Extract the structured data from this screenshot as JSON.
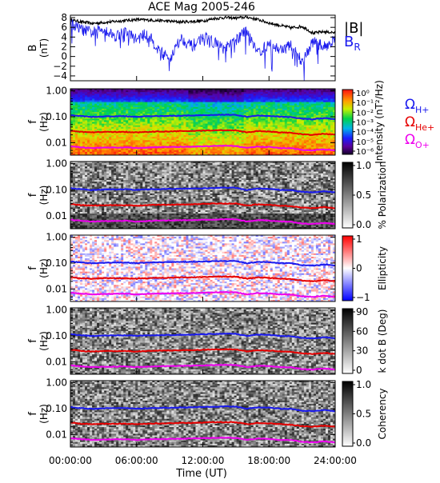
{
  "title": "ACE Mag 2005-246",
  "chart_data": [
    {
      "type": "line",
      "ylabel_main": "B",
      "ylabel_unit": "(nT)",
      "ylim": [
        -5,
        8.5
      ],
      "yticks": [
        8,
        6,
        4,
        2,
        0,
        -2,
        -4
      ],
      "series": [
        {
          "name": "|B|",
          "color": "#000000",
          "x": [
            0,
            2,
            4,
            6,
            8,
            10,
            12,
            13,
            14,
            15,
            16,
            17,
            18,
            19,
            20,
            21,
            22,
            23,
            24
          ],
          "y": [
            7.5,
            6.8,
            7.2,
            7.6,
            7.4,
            7.1,
            7.3,
            7.8,
            8.0,
            7.9,
            8.1,
            7.6,
            6.9,
            6.4,
            5.9,
            6.2,
            4.8,
            5.1,
            4.9
          ]
        },
        {
          "name": "B_R",
          "label_main": "B",
          "label_sub": "R",
          "color": "#1a1aee",
          "x": [
            0,
            1,
            2,
            3,
            4,
            5,
            6,
            7,
            8,
            9,
            10,
            11,
            12,
            13,
            14,
            15,
            16,
            17,
            18,
            19,
            20,
            21,
            22,
            23,
            24
          ],
          "y": [
            6.8,
            5.5,
            4.9,
            5.8,
            4.2,
            5.1,
            3.5,
            4.8,
            1.2,
            -0.5,
            3.8,
            2.1,
            4.0,
            3.0,
            1.5,
            3.3,
            5.5,
            0.8,
            2.5,
            1.4,
            2.2,
            -1.0,
            3.1,
            2.0,
            3.5
          ]
        }
      ]
    },
    {
      "type": "heatmap",
      "ylabel_main": "f",
      "ylabel_unit": "(Hz)",
      "colorbar_label": "Intensity (nT²/Hz)",
      "colorbar_ticks": [
        "10⁰",
        "10⁻¹",
        "10⁻²",
        "10⁻³",
        "10⁻⁴",
        "10⁻⁵",
        "10⁻⁶"
      ],
      "legend": [
        {
          "main": "Ω",
          "sub": "H+",
          "color": "#1a1aee"
        },
        {
          "main": "Ω",
          "sub": "He+",
          "color": "#e60000"
        },
        {
          "main": "Ω",
          "sub": "O+",
          "color": "#ee00ee"
        }
      ]
    },
    {
      "type": "heatmap",
      "ylabel_main": "f",
      "ylabel_unit": "(Hz)",
      "colorbar_label": "% Polarization",
      "colorbar_ticks": [
        "1.0",
        "0.5",
        "0.0"
      ]
    },
    {
      "type": "heatmap",
      "ylabel_main": "f",
      "ylabel_unit": "(Hz)",
      "colorbar_label": "Ellipticity",
      "colorbar_ticks": [
        "1",
        "0",
        "−1"
      ]
    },
    {
      "type": "heatmap",
      "ylabel_main": "f",
      "ylabel_unit": "(Hz)",
      "colorbar_label": "k dot B (Deg)",
      "colorbar_ticks": [
        "90",
        "60",
        "30",
        "0"
      ]
    },
    {
      "type": "heatmap",
      "ylabel_main": "f",
      "ylabel_unit": "(Hz)",
      "colorbar_label": "Coherency",
      "colorbar_ticks": [
        "1.0",
        "0.5",
        "0.0"
      ]
    }
  ],
  "freq_ticks": [
    "1.00",
    "0.10",
    "0.01"
  ],
  "gyro_lines": {
    "x": [
      0,
      1,
      2,
      3,
      4,
      5,
      6,
      7,
      8,
      9,
      10,
      11,
      12,
      13,
      14,
      15,
      16,
      17,
      18,
      19,
      20,
      21,
      22,
      23,
      24
    ],
    "H": [
      0.115,
      0.105,
      0.098,
      0.102,
      0.104,
      0.105,
      0.1,
      0.104,
      0.106,
      0.108,
      0.11,
      0.112,
      0.115,
      0.118,
      0.121,
      0.119,
      0.098,
      0.112,
      0.108,
      0.1,
      0.097,
      0.083,
      0.08,
      0.088,
      0.08
    ],
    "He": [
      0.029,
      0.026,
      0.025,
      0.026,
      0.026,
      0.026,
      0.025,
      0.026,
      0.027,
      0.027,
      0.028,
      0.028,
      0.029,
      0.03,
      0.03,
      0.03,
      0.025,
      0.028,
      0.027,
      0.025,
      0.024,
      0.021,
      0.02,
      0.022,
      0.02
    ],
    "O": [
      0.0072,
      0.0066,
      0.0062,
      0.0064,
      0.0065,
      0.0066,
      0.0062,
      0.0065,
      0.0067,
      0.0068,
      0.0069,
      0.007,
      0.0072,
      0.0074,
      0.0076,
      0.0074,
      0.0062,
      0.007,
      0.0068,
      0.0062,
      0.0061,
      0.0052,
      0.005,
      0.0055,
      0.005
    ]
  },
  "xaxis": {
    "ticks": [
      0,
      6,
      12,
      18,
      24
    ],
    "tick_labels": [
      "00:00:00",
      "06:00:00",
      "12:00:00",
      "18:00:00",
      "24:00:00"
    ],
    "label": "Time (UT)"
  }
}
